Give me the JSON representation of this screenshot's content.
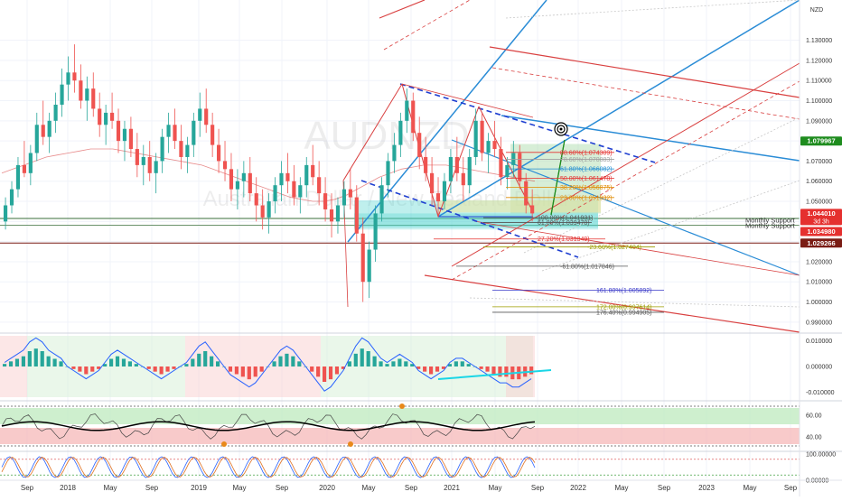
{
  "chart_data": {
    "type": "candlestick",
    "symbol": "AUDNZD",
    "watermark_symbol": "AUDNZD",
    "watermark_name": "Australian Dollar / New Zealand Dollar",
    "currency": "NZD",
    "price_axis": {
      "ylim": [
        0.985,
        1.15
      ],
      "ticks": [
        "1.130000",
        "1.120000",
        "1.110000",
        "1.100000",
        "1.090000",
        "1.080000",
        "1.070000",
        "1.060000",
        "1.050000",
        "1.040000",
        "1.030000",
        "1.020000",
        "1.010000",
        "1.000000",
        "0.990000"
      ],
      "tick_values": [
        1.13,
        1.12,
        1.11,
        1.1,
        1.09,
        1.08,
        1.07,
        1.06,
        1.05,
        1.04,
        1.03,
        1.02,
        1.01,
        1.0,
        0.99
      ]
    },
    "price_labels": [
      {
        "text": "1.079967",
        "value": 1.079967,
        "color": "#1e8c1e"
      },
      {
        "text": "1.044010",
        "value": 1.04401,
        "color": "#e5302f",
        "sub": "3d 3h"
      },
      {
        "text": "1.034980",
        "value": 1.03498,
        "color": "#e5302f"
      },
      {
        "text": "1.029266",
        "value": 1.029266,
        "color": "#7a1c14"
      }
    ],
    "time_axis": {
      "labels": [
        "Sep",
        "2018",
        "May",
        "Sep",
        "2019",
        "May",
        "Sep",
        "2020",
        "May",
        "Sep",
        "2021",
        "May",
        "Sep",
        "2022",
        "May",
        "Sep",
        "2023",
        "May",
        "Sep"
      ],
      "dates": [
        "2017-09-01",
        "2018-01-01",
        "2018-05-01",
        "2018-09-01",
        "2019-01-01",
        "2019-05-01",
        "2019-09-01",
        "2020-01-01",
        "2020-05-01",
        "2020-09-01",
        "2021-01-01",
        "2021-05-01",
        "2021-09-01",
        "2022-01-01",
        "2022-05-01",
        "2022-09-01",
        "2023-01-01",
        "2023-05-01",
        "2023-09-01"
      ]
    },
    "candles": [
      [
        1.04,
        1.052,
        1.036,
        1.048
      ],
      [
        1.048,
        1.06,
        1.044,
        1.056
      ],
      [
        1.056,
        1.072,
        1.052,
        1.068
      ],
      [
        1.068,
        1.08,
        1.062,
        1.064
      ],
      [
        1.064,
        1.078,
        1.058,
        1.074
      ],
      [
        1.074,
        1.094,
        1.07,
        1.088
      ],
      [
        1.088,
        1.1,
        1.078,
        1.082
      ],
      [
        1.082,
        1.094,
        1.074,
        1.09
      ],
      [
        1.09,
        1.104,
        1.084,
        1.098
      ],
      [
        1.098,
        1.116,
        1.092,
        1.108
      ],
      [
        1.108,
        1.122,
        1.1,
        1.114
      ],
      [
        1.114,
        1.128,
        1.104,
        1.11
      ],
      [
        1.11,
        1.118,
        1.096,
        1.1
      ],
      [
        1.1,
        1.112,
        1.09,
        1.106
      ],
      [
        1.106,
        1.114,
        1.092,
        1.096
      ],
      [
        1.096,
        1.104,
        1.082,
        1.088
      ],
      [
        1.088,
        1.098,
        1.078,
        1.094
      ],
      [
        1.094,
        1.104,
        1.086,
        1.09
      ],
      [
        1.09,
        1.096,
        1.074,
        1.08
      ],
      [
        1.08,
        1.09,
        1.07,
        1.086
      ],
      [
        1.086,
        1.092,
        1.072,
        1.076
      ],
      [
        1.076,
        1.084,
        1.062,
        1.068
      ],
      [
        1.068,
        1.078,
        1.058,
        1.072
      ],
      [
        1.072,
        1.08,
        1.06,
        1.064
      ],
      [
        1.064,
        1.074,
        1.054,
        1.07
      ],
      [
        1.07,
        1.086,
        1.064,
        1.082
      ],
      [
        1.082,
        1.094,
        1.074,
        1.088
      ],
      [
        1.088,
        1.096,
        1.076,
        1.08
      ],
      [
        1.08,
        1.088,
        1.066,
        1.072
      ],
      [
        1.072,
        1.082,
        1.064,
        1.078
      ],
      [
        1.078,
        1.094,
        1.072,
        1.09
      ],
      [
        1.09,
        1.104,
        1.082,
        1.096
      ],
      [
        1.096,
        1.106,
        1.084,
        1.088
      ],
      [
        1.088,
        1.094,
        1.072,
        1.078
      ],
      [
        1.078,
        1.086,
        1.064,
        1.07
      ],
      [
        1.07,
        1.08,
        1.06,
        1.066
      ],
      [
        1.066,
        1.074,
        1.05,
        1.056
      ],
      [
        1.056,
        1.066,
        1.046,
        1.06
      ],
      [
        1.06,
        1.07,
        1.052,
        1.064
      ],
      [
        1.064,
        1.072,
        1.05,
        1.054
      ],
      [
        1.054,
        1.062,
        1.04,
        1.048
      ],
      [
        1.048,
        1.056,
        1.036,
        1.042
      ],
      [
        1.042,
        1.054,
        1.034,
        1.05
      ],
      [
        1.05,
        1.062,
        1.044,
        1.058
      ],
      [
        1.058,
        1.07,
        1.05,
        1.064
      ],
      [
        1.064,
        1.074,
        1.054,
        1.06
      ],
      [
        1.06,
        1.068,
        1.048,
        1.052
      ],
      [
        1.052,
        1.062,
        1.044,
        1.058
      ],
      [
        1.058,
        1.072,
        1.052,
        1.068
      ],
      [
        1.068,
        1.078,
        1.058,
        1.062
      ],
      [
        1.062,
        1.07,
        1.048,
        1.054
      ],
      [
        1.054,
        1.062,
        1.04,
        1.046
      ],
      [
        1.046,
        1.054,
        1.032,
        1.04
      ],
      [
        1.04,
        1.052,
        1.034,
        1.048
      ],
      [
        1.048,
        1.06,
        1.042,
        1.056
      ],
      [
        1.056,
        1.066,
        1.046,
        1.052
      ],
      [
        1.052,
        1.058,
        1.03,
        1.034
      ],
      [
        1.034,
        1.042,
        1.0,
        1.01
      ],
      [
        1.01,
        1.03,
        1.002,
        1.026
      ],
      [
        1.026,
        1.048,
        1.02,
        1.044
      ],
      [
        1.044,
        1.062,
        1.04,
        1.058
      ],
      [
        1.058,
        1.074,
        1.052,
        1.07
      ],
      [
        1.07,
        1.084,
        1.064,
        1.078
      ],
      [
        1.078,
        1.094,
        1.072,
        1.09
      ],
      [
        1.09,
        1.106,
        1.084,
        1.1
      ],
      [
        1.1,
        1.104,
        1.08,
        1.084
      ],
      [
        1.084,
        1.092,
        1.066,
        1.072
      ],
      [
        1.072,
        1.082,
        1.06,
        1.064
      ],
      [
        1.064,
        1.072,
        1.048,
        1.054
      ],
      [
        1.054,
        1.062,
        1.042,
        1.05
      ],
      [
        1.05,
        1.064,
        1.046,
        1.06
      ],
      [
        1.06,
        1.076,
        1.054,
        1.072
      ],
      [
        1.072,
        1.082,
        1.06,
        1.064
      ],
      [
        1.064,
        1.072,
        1.05,
        1.058
      ],
      [
        1.058,
        1.076,
        1.054,
        1.072
      ],
      [
        1.072,
        1.096,
        1.068,
        1.09
      ],
      [
        1.09,
        1.094,
        1.07,
        1.074
      ],
      [
        1.074,
        1.084,
        1.064,
        1.08
      ],
      [
        1.08,
        1.09,
        1.072,
        1.076
      ],
      [
        1.076,
        1.082,
        1.058,
        1.062
      ],
      [
        1.062,
        1.072,
        1.056,
        1.068
      ],
      [
        1.068,
        1.08,
        1.062,
        1.074
      ],
      [
        1.074,
        1.078,
        1.056,
        1.06
      ],
      [
        1.06,
        1.064,
        1.044,
        1.048
      ],
      [
        1.048,
        1.056,
        1.04,
        1.044
      ]
    ],
    "ma_line": [
      1.064,
      1.066,
      1.068,
      1.07,
      1.072,
      1.073,
      1.074,
      1.075,
      1.076,
      1.076,
      1.076,
      1.075,
      1.074,
      1.073,
      1.072,
      1.071,
      1.07,
      1.069,
      1.068,
      1.066,
      1.064,
      1.062,
      1.06,
      1.058,
      1.056,
      1.054,
      1.052,
      1.051,
      1.05,
      1.05,
      1.051,
      1.053,
      1.056,
      1.059,
      1.062,
      1.064,
      1.066,
      1.067,
      1.068,
      1.068,
      1.068,
      1.067,
      1.066,
      1.065,
      1.064,
      1.063,
      1.062,
      1.061,
      1.06
    ],
    "fib_upper": [
      {
        "text": "88.60%(1.074309)",
        "value": 1.0743,
        "color": "#e5302f"
      },
      {
        "text": "78.60%(1.070883)",
        "value": 1.0709,
        "color": "#a0a0a0"
      },
      {
        "text": "61.80%(1.066082)",
        "value": 1.0661,
        "color": "#1e8cd2"
      },
      {
        "text": "50.00%(1.061478)",
        "value": 1.0615,
        "color": "#e5302f"
      },
      {
        "text": "38.20%(1.056875)",
        "value": 1.0569,
        "color": "#e08a00"
      },
      {
        "text": "23.60%(1.051932)",
        "value": 1.0519,
        "color": "#e08a00"
      },
      {
        "text": "100.00%(1.041931)",
        "value": 1.0419,
        "color": "#555555"
      },
      {
        "text": "61.80%(1.039478)",
        "value": 1.0395,
        "color": "#555555"
      }
    ],
    "fib_lower": [
      {
        "text": "27.20%(1.031349)",
        "value": 1.0313,
        "color": "#e5302f"
      },
      {
        "text": "-23.60%(1.027404)",
        "value": 1.0274,
        "color": "#9c9c00"
      },
      {
        "text": "-61.80%(1.017846)",
        "value": 1.0178,
        "color": "#555555"
      },
      {
        "text": "161.80%(1.005892)",
        "value": 1.0059,
        "color": "#3a3ac8"
      },
      {
        "text": "172.00%(0.997614)",
        "value": 0.9976,
        "color": "#9c9c00"
      },
      {
        "text": "176.40%(0.994905)",
        "value": 0.9949,
        "color": "#555555"
      }
    ],
    "support_labels": [
      {
        "text": "Monthly Support",
        "value": 1.0405
      },
      {
        "text": "Monthly Support",
        "value": 1.0378
      }
    ],
    "oscillator_1": {
      "ticks": [
        "0.010000",
        "0.000000",
        "-0.010000"
      ],
      "tick_values": [
        0.01,
        0.0,
        -0.01
      ],
      "histogram": [
        0.001,
        0.002,
        0.003,
        0.004,
        0.006,
        0.007,
        0.006,
        0.004,
        0.003,
        0.002,
        0.0,
        -0.001,
        -0.002,
        -0.003,
        -0.002,
        -0.001,
        0.001,
        0.003,
        0.004,
        0.003,
        0.002,
        0.001,
        0.0,
        -0.001,
        -0.002,
        -0.003,
        -0.002,
        -0.001,
        0.0,
        0.001,
        0.003,
        0.005,
        0.006,
        0.004,
        0.002,
        0.0,
        -0.002,
        -0.003,
        -0.004,
        -0.005,
        -0.004,
        -0.002,
        0.0,
        0.002,
        0.004,
        0.005,
        0.004,
        0.002,
        0.0,
        -0.002,
        -0.004,
        -0.006,
        -0.005,
        -0.003,
        -0.001,
        0.002,
        0.005,
        0.007,
        0.006,
        0.004,
        0.002,
        0.001,
        0.002,
        0.003,
        0.002,
        0.001,
        -0.001,
        -0.002,
        -0.003,
        -0.002,
        -0.001,
        0.001,
        0.002,
        0.002,
        0.001,
        0.0,
        -0.001,
        -0.002,
        -0.003,
        -0.004,
        -0.004,
        -0.005,
        -0.005,
        -0.004,
        -0.003
      ]
    },
    "oscillator_2": {
      "ticks": [
        "60.00",
        "40.00"
      ],
      "tick_values": [
        60,
        40
      ]
    },
    "oscillator_3": {
      "ticks": [
        "100.00000",
        "0.00000"
      ],
      "tick_values": [
        100,
        0
      ]
    },
    "icon_names": [
      "target-icon"
    ]
  }
}
